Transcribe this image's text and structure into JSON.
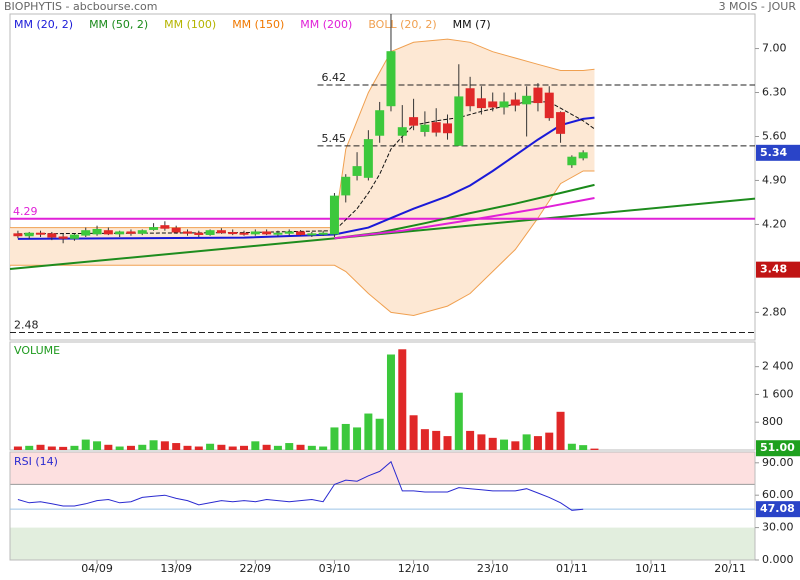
{
  "header": {
    "title": "BIOPHYTIS - abcbourse.com",
    "period": "3 MOIS - JOUR"
  },
  "chart_data": [
    {
      "type": "candlestick",
      "x": [
        0,
        1,
        2,
        3,
        4,
        5,
        6,
        7,
        8,
        9,
        10,
        11,
        12,
        13,
        14,
        15,
        16,
        17,
        18,
        19,
        20,
        21,
        22,
        23,
        24,
        25,
        26,
        27,
        28,
        29,
        30,
        31,
        32,
        33,
        34,
        35,
        36,
        37,
        38,
        39,
        40,
        41,
        42,
        43,
        44,
        45,
        46,
        47,
        48,
        49,
        50
      ],
      "open": [
        4.05,
        4.02,
        4.06,
        4.05,
        4.0,
        3.98,
        4.03,
        4.05,
        4.1,
        4.05,
        4.08,
        4.06,
        4.12,
        4.18,
        4.14,
        4.08,
        4.06,
        4.04,
        4.1,
        4.07,
        4.06,
        4.05,
        4.08,
        4.05,
        4.06,
        4.08,
        4.04,
        4.05,
        4.05,
        4.67,
        4.98,
        4.95,
        5.62,
        6.09,
        5.62,
        5.9,
        5.68,
        5.82,
        5.8,
        5.46,
        6.36,
        6.2,
        6.15,
        6.07,
        6.18,
        6.12,
        6.37,
        6.29,
        5.98,
        5.15,
        5.26
      ],
      "high": [
        4.1,
        4.08,
        4.1,
        4.08,
        4.05,
        4.05,
        4.15,
        4.18,
        4.15,
        4.1,
        4.12,
        4.12,
        4.22,
        4.25,
        4.18,
        4.12,
        4.1,
        4.12,
        4.14,
        4.12,
        4.1,
        4.12,
        4.12,
        4.1,
        4.12,
        4.11,
        4.08,
        4.1,
        4.7,
        5.0,
        5.35,
        5.7,
        6.15,
        7.55,
        6.1,
        6.2,
        6.0,
        6.05,
        5.95,
        6.75,
        6.55,
        6.4,
        6.3,
        6.3,
        6.3,
        6.4,
        6.45,
        6.4,
        6.0,
        5.3,
        5.38
      ],
      "low": [
        3.98,
        3.97,
        4.0,
        3.95,
        3.9,
        3.94,
        4.0,
        4.02,
        4.03,
        4.0,
        4.02,
        4.03,
        4.1,
        4.1,
        4.05,
        4.02,
        4.0,
        4.02,
        4.05,
        4.03,
        4.02,
        4.02,
        4.03,
        4.01,
        4.02,
        4.02,
        4.0,
        4.02,
        4.0,
        4.55,
        4.9,
        4.9,
        5.5,
        6.0,
        5.5,
        5.7,
        5.6,
        5.6,
        5.55,
        5.45,
        6.0,
        5.95,
        6.0,
        5.95,
        6.0,
        5.6,
        6.0,
        5.85,
        5.5,
        5.1,
        5.22
      ],
      "close": [
        4.02,
        4.06,
        4.05,
        4.0,
        3.98,
        4.03,
        4.1,
        4.12,
        4.05,
        4.08,
        4.06,
        4.1,
        4.15,
        4.14,
        4.08,
        4.06,
        4.04,
        4.1,
        4.07,
        4.06,
        4.05,
        4.08,
        4.05,
        4.06,
        4.08,
        4.04,
        4.05,
        4.06,
        4.65,
        4.95,
        5.12,
        5.55,
        6.01,
        6.95,
        5.74,
        5.78,
        5.78,
        5.67,
        5.66,
        6.23,
        6.09,
        6.06,
        6.07,
        6.15,
        6.1,
        6.24,
        6.14,
        5.9,
        5.65,
        5.27,
        5.34
      ],
      "up_color": "#3cc83c",
      "down_color": "#e02828",
      "xlim": [
        -0.7,
        65.2
      ],
      "xticks": [
        {
          "value": 7,
          "label": "04/09"
        },
        {
          "value": 14,
          "label": "13/09"
        },
        {
          "value": 21,
          "label": "22/09"
        },
        {
          "value": 28,
          "label": "03/10"
        },
        {
          "value": 35,
          "label": "12/10"
        },
        {
          "value": 42,
          "label": "23/10"
        },
        {
          "value": 49,
          "label": "01/11"
        },
        {
          "value": 56,
          "label": "10/11"
        },
        {
          "value": 63,
          "label": "20/11"
        }
      ],
      "ylim": [
        2.36,
        7.55
      ],
      "yticks": [
        {
          "value": 2.8,
          "label": "2.80"
        },
        {
          "value": 4.2,
          "label": "4.20"
        },
        {
          "value": 4.9,
          "label": "4.90"
        },
        {
          "value": 5.6,
          "label": "5.60"
        },
        {
          "value": 6.3,
          "label": "6.30"
        },
        {
          "value": 7,
          "label": "7.00"
        }
      ],
      "series": [
        {
          "name": "MM (20, 2)",
          "color": "#1a1ad8",
          "x": [
            0,
            10,
            20,
            28,
            31,
            33,
            35,
            38,
            40,
            42,
            44,
            46,
            48,
            50,
            51
          ],
          "values": [
            3.97,
            3.98,
            3.99,
            4.04,
            4.15,
            4.3,
            4.45,
            4.65,
            4.82,
            5.05,
            5.3,
            5.55,
            5.78,
            5.88,
            5.9
          ]
        },
        {
          "name": "MM (50, 2)",
          "color": "#1a8a1a",
          "x": [
            28,
            32,
            36,
            40,
            44,
            48,
            51
          ],
          "values": [
            3.98,
            4.07,
            4.22,
            4.38,
            4.53,
            4.7,
            4.83
          ]
        },
        {
          "name": "MM (100)",
          "color": "#b4b400",
          "x": [],
          "values": []
        },
        {
          "name": "MM (150)",
          "color": "#f07800",
          "x": [],
          "values": []
        },
        {
          "name": "MM (200)",
          "color": "#e020d8",
          "x": [
            28,
            34,
            40,
            46,
            51
          ],
          "values": [
            3.98,
            4.1,
            4.27,
            4.45,
            4.62
          ]
        },
        {
          "name": "MM (7)",
          "color": "#111111",
          "dashed": true,
          "x": [
            0,
            10,
            20,
            28,
            30,
            31,
            32,
            33,
            34,
            35,
            37,
            39,
            41,
            43,
            45,
            47,
            48,
            50,
            51
          ],
          "values": [
            4.05,
            4.06,
            4.07,
            4.1,
            4.45,
            4.7,
            5.0,
            5.4,
            5.6,
            5.78,
            5.85,
            5.9,
            6.0,
            6.08,
            6.15,
            6.15,
            6.05,
            5.85,
            5.72
          ]
        }
      ],
      "bollinger": {
        "name": "BOLL (20, 2)",
        "color": "#f0a050",
        "fill": "#fde8d4",
        "x": [
          -0.7,
          28,
          29,
          31,
          33,
          35,
          38,
          40,
          42,
          44,
          46,
          48,
          50,
          51
        ],
        "upper": [
          4.15,
          4.15,
          5.4,
          6.3,
          6.95,
          7.1,
          7.15,
          7.1,
          6.95,
          6.85,
          6.75,
          6.65,
          6.65,
          6.67
        ],
        "lower": [
          3.55,
          3.55,
          3.45,
          3.1,
          2.8,
          2.75,
          2.9,
          3.1,
          3.45,
          3.8,
          4.3,
          4.85,
          5.05,
          5.05
        ]
      },
      "levels": [
        {
          "value": 6.42,
          "x": 26.5
        },
        {
          "value": 5.45,
          "x": 26.5
        },
        {
          "value": 2.48,
          "x": -0.7
        }
      ],
      "support": {
        "value": 4.29,
        "color": "#e020d8"
      },
      "trendline": {
        "x": [
          -0.7,
          65.2
        ],
        "values": [
          3.49,
          4.61
        ],
        "color": "#1e8c1e"
      },
      "level_badge": 3.48
    },
    {
      "type": "bar",
      "title": "VOLUME",
      "x": [
        0,
        1,
        2,
        3,
        4,
        5,
        6,
        7,
        8,
        9,
        10,
        11,
        12,
        13,
        14,
        15,
        16,
        17,
        18,
        19,
        20,
        21,
        22,
        23,
        24,
        25,
        26,
        27,
        28,
        29,
        30,
        31,
        32,
        33,
        34,
        35,
        36,
        37,
        38,
        39,
        40,
        41,
        42,
        43,
        44,
        45,
        46,
        47,
        48,
        49,
        50,
        51
      ],
      "values": [
        100,
        120,
        150,
        100,
        90,
        120,
        300,
        250,
        150,
        100,
        120,
        150,
        280,
        250,
        200,
        120,
        100,
        180,
        150,
        100,
        120,
        250,
        150,
        120,
        200,
        150,
        120,
        100,
        650,
        750,
        650,
        1050,
        900,
        2750,
        2900,
        1000,
        600,
        550,
        400,
        1650,
        550,
        450,
        350,
        300,
        250,
        450,
        400,
        500,
        1100,
        180,
        140,
        40
      ],
      "colors": [
        "#e02828",
        "#3cc83c",
        "#e02828",
        "#e02828",
        "#e02828",
        "#3cc83c",
        "#3cc83c",
        "#3cc83c",
        "#e02828",
        "#3cc83c",
        "#e02828",
        "#3cc83c",
        "#3cc83c",
        "#e02828",
        "#e02828",
        "#e02828",
        "#e02828",
        "#3cc83c",
        "#e02828",
        "#e02828",
        "#e02828",
        "#3cc83c",
        "#e02828",
        "#3cc83c",
        "#3cc83c",
        "#e02828",
        "#3cc83c",
        "#3cc83c",
        "#3cc83c",
        "#3cc83c",
        "#3cc83c",
        "#3cc83c",
        "#3cc83c",
        "#3cc83c",
        "#e02828",
        "#e02828",
        "#e02828",
        "#e02828",
        "#e02828",
        "#3cc83c",
        "#e02828",
        "#e02828",
        "#e02828",
        "#3cc83c",
        "#e02828",
        "#3cc83c",
        "#e02828",
        "#e02828",
        "#e02828",
        "#3cc83c",
        "#3cc83c",
        "#e02828"
      ],
      "xlim": [
        -0.7,
        65.2
      ],
      "ylim": [
        0,
        3110
      ],
      "yticks": [
        {
          "value": 800,
          "label": "800"
        },
        {
          "value": 1600,
          "label": "1 600"
        },
        {
          "value": 2400,
          "label": "2 400"
        }
      ],
      "badge": {
        "value": 51,
        "label": "51.00",
        "color": "#1ea01e"
      }
    },
    {
      "type": "line",
      "title": "RSI (14)",
      "color": "#2a2ad0",
      "x": [
        0,
        1,
        2,
        3,
        4,
        5,
        6,
        7,
        8,
        9,
        10,
        11,
        12,
        13,
        14,
        15,
        16,
        17,
        18,
        19,
        20,
        21,
        22,
        23,
        24,
        25,
        26,
        27,
        28,
        29,
        30,
        31,
        32,
        33,
        34,
        35,
        36,
        37,
        38,
        39,
        40,
        41,
        42,
        43,
        44,
        45,
        46,
        47,
        48,
        49,
        50
      ],
      "values": [
        56,
        53,
        54,
        52,
        50,
        50,
        52,
        55,
        56,
        53,
        54,
        58,
        59,
        60,
        57,
        55,
        51,
        53,
        55,
        54,
        55,
        54,
        56,
        55,
        54,
        55,
        56,
        54,
        70,
        74,
        73,
        78,
        82,
        91,
        64,
        64,
        63,
        63,
        63,
        67,
        66,
        65,
        64,
        64,
        64,
        66,
        62,
        58,
        53,
        46,
        47.08
      ],
      "xlim": [
        -0.7,
        65.2
      ],
      "ylim": [
        0,
        100
      ],
      "yticks": [
        {
          "value": 0,
          "label": "0.000"
        },
        {
          "value": 30,
          "label": "30.00"
        },
        {
          "value": 60,
          "label": "60.00"
        },
        {
          "value": 90,
          "label": "90.00"
        }
      ],
      "zones": [
        {
          "from": 70,
          "to": 100,
          "color": "#fde0e0"
        },
        {
          "from": 0,
          "to": 30,
          "color": "#e2eede"
        }
      ]
    }
  ]
}
